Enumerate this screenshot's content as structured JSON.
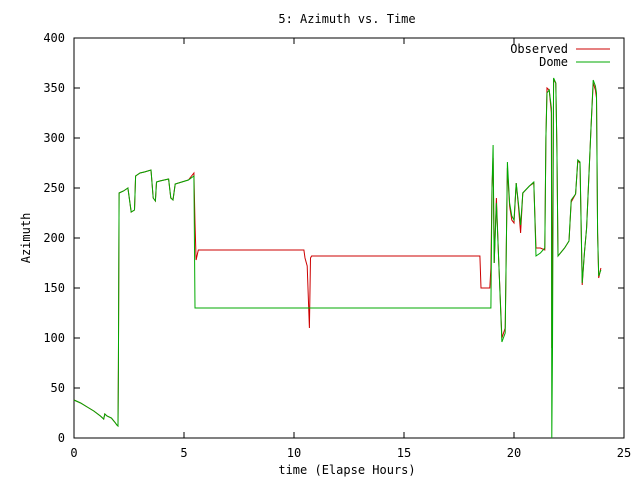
{
  "chart_data": {
    "type": "line",
    "title": "5: Azimuth vs. Time",
    "xlabel": "time (Elapse Hours)",
    "ylabel": "Azimuth",
    "xlim": [
      0,
      25
    ],
    "ylim": [
      0,
      400
    ],
    "xticks": [
      0,
      5,
      10,
      15,
      20,
      25
    ],
    "yticks": [
      0,
      50,
      100,
      150,
      200,
      250,
      300,
      350,
      400
    ],
    "grid": false,
    "legend_position": "top-right",
    "series": [
      {
        "name": "Observed",
        "color": "#cc0000",
        "points": [
          [
            0.0,
            38
          ],
          [
            0.3,
            35
          ],
          [
            0.6,
            31
          ],
          [
            0.9,
            27
          ],
          [
            1.2,
            22
          ],
          [
            1.35,
            19
          ],
          [
            1.4,
            24
          ],
          [
            1.5,
            22
          ],
          [
            1.7,
            20
          ],
          [
            1.85,
            16
          ],
          [
            1.95,
            13
          ],
          [
            2.0,
            12
          ],
          [
            2.02,
            70
          ],
          [
            2.05,
            245
          ],
          [
            2.25,
            247
          ],
          [
            2.45,
            250
          ],
          [
            2.6,
            226
          ],
          [
            2.75,
            228
          ],
          [
            2.8,
            262
          ],
          [
            3.0,
            265
          ],
          [
            3.2,
            266
          ],
          [
            3.5,
            268
          ],
          [
            3.6,
            240
          ],
          [
            3.7,
            237
          ],
          [
            3.75,
            256
          ],
          [
            3.9,
            257
          ],
          [
            4.1,
            258
          ],
          [
            4.3,
            259
          ],
          [
            4.4,
            240
          ],
          [
            4.5,
            238
          ],
          [
            4.6,
            254
          ],
          [
            4.9,
            256
          ],
          [
            5.2,
            258
          ],
          [
            5.45,
            265
          ],
          [
            5.5,
            215
          ],
          [
            5.55,
            178
          ],
          [
            5.65,
            188
          ],
          [
            6.0,
            188
          ],
          [
            7.0,
            188
          ],
          [
            8.0,
            188
          ],
          [
            9.0,
            188
          ],
          [
            10.0,
            188
          ],
          [
            10.45,
            188
          ],
          [
            10.5,
            180
          ],
          [
            10.6,
            172
          ],
          [
            10.7,
            110
          ],
          [
            10.75,
            180
          ],
          [
            10.8,
            182
          ],
          [
            12.0,
            182
          ],
          [
            14.0,
            182
          ],
          [
            16.0,
            182
          ],
          [
            18.0,
            182
          ],
          [
            18.45,
            182
          ],
          [
            18.5,
            150
          ],
          [
            18.9,
            150
          ],
          [
            18.95,
            170
          ],
          [
            19.0,
            250
          ],
          [
            19.05,
            280
          ],
          [
            19.1,
            175
          ],
          [
            19.2,
            240
          ],
          [
            19.3,
            180
          ],
          [
            19.45,
            100
          ],
          [
            19.6,
            110
          ],
          [
            19.7,
            270
          ],
          [
            19.8,
            232
          ],
          [
            19.9,
            218
          ],
          [
            20.0,
            215
          ],
          [
            20.1,
            255
          ],
          [
            20.2,
            232
          ],
          [
            20.3,
            205
          ],
          [
            20.4,
            245
          ],
          [
            20.7,
            252
          ],
          [
            20.9,
            255
          ],
          [
            21.0,
            190
          ],
          [
            21.2,
            190
          ],
          [
            21.4,
            188
          ],
          [
            21.45,
            300
          ],
          [
            21.5,
            350
          ],
          [
            21.6,
            348
          ],
          [
            21.7,
            325
          ],
          [
            21.72,
            90
          ],
          [
            21.8,
            358
          ],
          [
            21.9,
            355
          ],
          [
            21.95,
            290
          ],
          [
            22.0,
            182
          ],
          [
            22.3,
            190
          ],
          [
            22.5,
            197
          ],
          [
            22.6,
            236
          ],
          [
            22.8,
            244
          ],
          [
            22.9,
            277
          ],
          [
            23.0,
            275
          ],
          [
            23.1,
            153
          ],
          [
            23.2,
            185
          ],
          [
            23.3,
            210
          ],
          [
            23.5,
            310
          ],
          [
            23.6,
            355
          ],
          [
            23.7,
            348
          ],
          [
            23.75,
            340
          ],
          [
            23.8,
            205
          ],
          [
            23.85,
            160
          ],
          [
            23.95,
            170
          ]
        ]
      },
      {
        "name": "Dome",
        "color": "#00aa00",
        "points": [
          [
            0.0,
            38
          ],
          [
            0.3,
            35
          ],
          [
            0.6,
            31
          ],
          [
            0.9,
            27
          ],
          [
            1.2,
            22
          ],
          [
            1.35,
            19
          ],
          [
            1.4,
            24
          ],
          [
            1.5,
            22
          ],
          [
            1.7,
            20
          ],
          [
            1.85,
            16
          ],
          [
            1.95,
            13
          ],
          [
            2.0,
            12
          ],
          [
            2.02,
            70
          ],
          [
            2.05,
            245
          ],
          [
            2.25,
            247
          ],
          [
            2.45,
            250
          ],
          [
            2.6,
            226
          ],
          [
            2.75,
            228
          ],
          [
            2.8,
            262
          ],
          [
            3.0,
            265
          ],
          [
            3.2,
            266
          ],
          [
            3.5,
            268
          ],
          [
            3.6,
            240
          ],
          [
            3.7,
            237
          ],
          [
            3.75,
            256
          ],
          [
            3.9,
            257
          ],
          [
            4.1,
            258
          ],
          [
            4.3,
            259
          ],
          [
            4.4,
            240
          ],
          [
            4.5,
            238
          ],
          [
            4.6,
            254
          ],
          [
            4.9,
            256
          ],
          [
            5.2,
            258
          ],
          [
            5.45,
            262
          ],
          [
            5.5,
            130
          ],
          [
            8.0,
            130
          ],
          [
            10.0,
            130
          ],
          [
            12.0,
            130
          ],
          [
            15.0,
            130
          ],
          [
            18.0,
            130
          ],
          [
            18.95,
            130
          ],
          [
            19.0,
            250
          ],
          [
            19.05,
            293
          ],
          [
            19.1,
            175
          ],
          [
            19.2,
            235
          ],
          [
            19.3,
            180
          ],
          [
            19.45,
            96
          ],
          [
            19.6,
            105
          ],
          [
            19.7,
            276
          ],
          [
            19.8,
            235
          ],
          [
            19.9,
            222
          ],
          [
            20.0,
            218
          ],
          [
            20.1,
            255
          ],
          [
            20.2,
            235
          ],
          [
            20.3,
            213
          ],
          [
            20.4,
            245
          ],
          [
            20.7,
            252
          ],
          [
            20.9,
            256
          ],
          [
            21.0,
            182
          ],
          [
            21.2,
            185
          ],
          [
            21.4,
            190
          ],
          [
            21.45,
            300
          ],
          [
            21.5,
            345
          ],
          [
            21.6,
            348
          ],
          [
            21.7,
            330
          ],
          [
            21.72,
            0
          ],
          [
            21.75,
            90
          ],
          [
            21.8,
            360
          ],
          [
            21.9,
            355
          ],
          [
            21.95,
            290
          ],
          [
            22.0,
            182
          ],
          [
            22.3,
            190
          ],
          [
            22.5,
            197
          ],
          [
            22.6,
            238
          ],
          [
            22.8,
            244
          ],
          [
            22.9,
            278
          ],
          [
            23.0,
            276
          ],
          [
            23.1,
            155
          ],
          [
            23.2,
            185
          ],
          [
            23.3,
            210
          ],
          [
            23.5,
            310
          ],
          [
            23.6,
            358
          ],
          [
            23.7,
            352
          ],
          [
            23.75,
            345
          ],
          [
            23.8,
            205
          ],
          [
            23.85,
            162
          ],
          [
            23.95,
            168
          ]
        ]
      }
    ]
  }
}
